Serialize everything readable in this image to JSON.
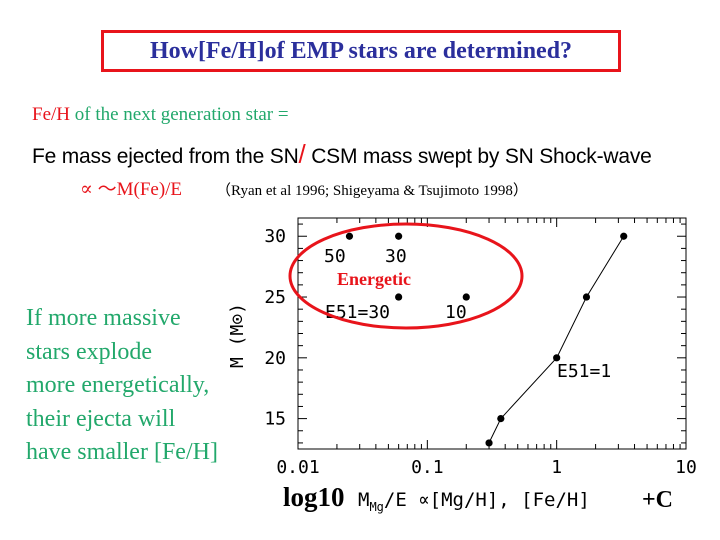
{
  "title": "How[Fe/H]of EMP stars are determined?",
  "line1": {
    "red": "Fe/H",
    "rest": " of the next generation star ="
  },
  "line2": {
    "part1": "Fe mass ejected from the SN",
    "slash": "/",
    "part2": " CSM mass swept by SN Shock-wave"
  },
  "line3": {
    "formula": "∝  ～M(Fe)/E",
    "citation": "（Ryan  et al 1996; Shigeyama & Tsujimoto 1998）"
  },
  "side_text": [
    "If more massive",
    "stars explode",
    "more energetically,",
    "their ejecta will",
    "have smaller [Fe/H]"
  ],
  "xaxis_label": {
    "log": "log10",
    "m": "M",
    "sub": "Mg",
    "rest": "/E ∝[Mg/H], [Fe/H]",
    "plusc": "+C"
  },
  "chart_data": {
    "type": "scatter",
    "x_scale": "log",
    "xlim": [
      0.01,
      10
    ],
    "ylim": [
      12.5,
      31.5
    ],
    "x_tick_labels": [
      "0.01",
      "0.1",
      "1",
      "10"
    ],
    "y_tick_labels": [
      "15",
      "20",
      "25",
      "30"
    ],
    "ylabel": "M (M⊙)",
    "colors": {
      "marker": "#000000",
      "ellipse": "#e8141b"
    },
    "series": [
      {
        "name": "E51=1",
        "connected": true,
        "x": [
          0.3,
          0.37,
          1.0,
          1.7,
          3.3
        ],
        "y": [
          13,
          15,
          20,
          25,
          30
        ]
      },
      {
        "connected": false,
        "x": [
          0.025,
          0.06,
          0.06,
          0.2
        ],
        "y": [
          30,
          30,
          25,
          25
        ]
      }
    ],
    "annotations": [
      "50",
      "30",
      "E51=30",
      "10",
      "E51=1"
    ],
    "highlight_label": "Energetic"
  }
}
